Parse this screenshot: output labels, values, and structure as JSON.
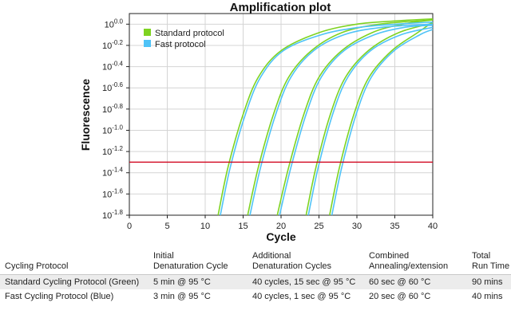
{
  "chart_data": {
    "type": "line",
    "title": "Amplification plot",
    "xlabel": "Cycle",
    "ylabel": "Fluorescence",
    "xlim": [
      0,
      40
    ],
    "ylim_log10": [
      -1.8,
      0.1
    ],
    "y_scale": "log10",
    "x_ticks": [
      0,
      5,
      10,
      15,
      20,
      25,
      30,
      35,
      40
    ],
    "y_tick_exponents": [
      "0.0",
      "-0.2",
      "-0.4",
      "-0.6",
      "-0.8",
      "-1.0",
      "-1.2",
      "-1.4",
      "-1.6",
      "-1.8"
    ],
    "y_tick_base": "10",
    "threshold_log10": -1.3,
    "grid": true,
    "legend_placement": "top-left",
    "series": [
      {
        "name": "Standard protocol",
        "color": "#7ed321",
        "curves": [
          {
            "x": [
              11.7,
              13,
              15,
              17,
              20,
              25,
              30,
              35,
              40
            ],
            "y": [
              -1.8,
              -1.35,
              -0.85,
              -0.5,
              -0.25,
              -0.08,
              0.0,
              0.03,
              0.05
            ]
          },
          {
            "x": [
              15.6,
              17,
              19,
              21,
              24,
              28,
              33,
              40
            ],
            "y": [
              -1.8,
              -1.35,
              -0.85,
              -0.5,
              -0.25,
              -0.08,
              0.0,
              0.04
            ]
          },
          {
            "x": [
              19.5,
              21,
              23,
              25,
              28,
              32,
              36,
              40
            ],
            "y": [
              -1.8,
              -1.35,
              -0.85,
              -0.5,
              -0.25,
              -0.08,
              0.0,
              0.04
            ]
          },
          {
            "x": [
              23.3,
              24.6,
              26.5,
              28.5,
              31.5,
              35.5,
              40
            ],
            "y": [
              -1.8,
              -1.35,
              -0.85,
              -0.5,
              -0.25,
              -0.08,
              0.01
            ]
          },
          {
            "x": [
              26.4,
              27.7,
              29.6,
              31.6,
              34.6,
              38,
              40
            ],
            "y": [
              -1.8,
              -1.35,
              -0.85,
              -0.5,
              -0.25,
              -0.08,
              0.02
            ]
          }
        ]
      },
      {
        "name": "Fast protocol",
        "color": "#4fc3f7",
        "curves": [
          {
            "x": [
              12.0,
              13.3,
              15.3,
              17.3,
              20.3,
              25.3,
              30.3,
              35.3,
              40
            ],
            "y": [
              -1.8,
              -1.35,
              -0.85,
              -0.5,
              -0.25,
              -0.1,
              -0.03,
              0.0,
              0.02
            ]
          },
          {
            "x": [
              15.9,
              17.3,
              19.3,
              21.3,
              24.3,
              28.3,
              33.3,
              40
            ],
            "y": [
              -1.8,
              -1.35,
              -0.85,
              -0.5,
              -0.25,
              -0.1,
              -0.03,
              0.0
            ]
          },
          {
            "x": [
              19.8,
              21.3,
              23.3,
              25.3,
              28.3,
              32.3,
              36.3,
              40
            ],
            "y": [
              -1.8,
              -1.35,
              -0.85,
              -0.5,
              -0.25,
              -0.1,
              -0.03,
              -0.01
            ]
          },
          {
            "x": [
              23.6,
              24.9,
              26.8,
              28.8,
              31.8,
              35.8,
              40
            ],
            "y": [
              -1.8,
              -1.35,
              -0.85,
              -0.5,
              -0.25,
              -0.1,
              -0.03
            ]
          },
          {
            "x": [
              26.7,
              28.0,
              29.9,
              31.9,
              34.9,
              38.3,
              40
            ],
            "y": [
              -1.8,
              -1.35,
              -0.85,
              -0.5,
              -0.25,
              -0.1,
              -0.05
            ]
          }
        ]
      }
    ],
    "threshold_color": "#d0021b"
  },
  "table": {
    "headers": [
      [
        "Cycling Protocol"
      ],
      [
        "Initial",
        "Denaturation Cycle"
      ],
      [
        "Additional",
        "Denaturation Cycles"
      ],
      [
        "Combined",
        "Annealing/extension"
      ],
      [
        "Total",
        "Run Time"
      ]
    ],
    "rows": [
      [
        "Standard Cycling Protocol (Green)",
        "5 min  @ 95 °C",
        "40 cycles, 15 sec @ 95 °C",
        "60 sec @ 60 °C",
        "90 mins"
      ],
      [
        "Fast Cycling Protocol (Blue)",
        "3 min @ 95 °C",
        "40 cycles, 1 sec @ 95 °C",
        "20 sec @ 60 °C",
        "40 mins"
      ]
    ]
  }
}
